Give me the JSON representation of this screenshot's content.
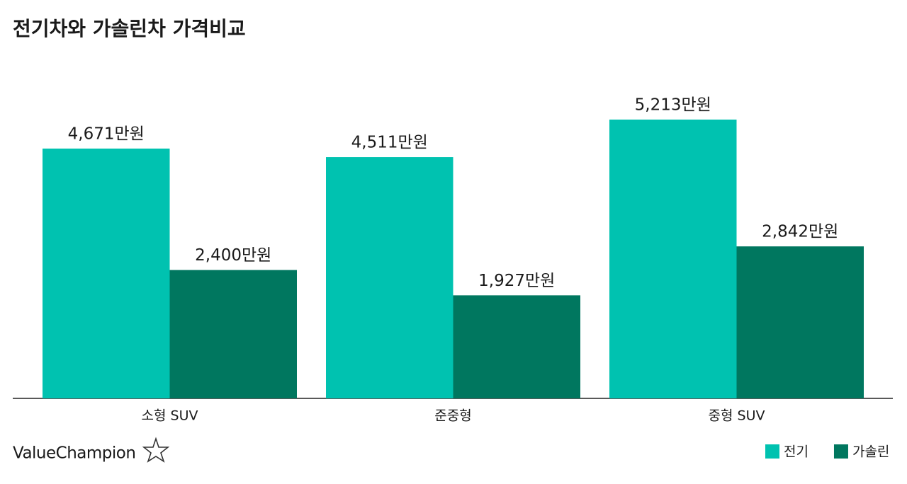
{
  "chart_data": {
    "type": "bar",
    "title": "전기차와 가솔린차 가격비교",
    "categories": [
      "소형 SUV",
      "준중형",
      "중형 SUV"
    ],
    "series": [
      {
        "name": "전기",
        "color": "#00c2b0",
        "values": [
          4671,
          4511,
          5213
        ],
        "value_labels": [
          "4,671만원",
          "4,511만원",
          "5,213만원"
        ]
      },
      {
        "name": "가솔린",
        "color": "#00775f",
        "values": [
          2400,
          1927,
          2842
        ],
        "value_labels": [
          "2,400만원",
          "1,927만원",
          "2,842만원"
        ]
      }
    ],
    "legend": "bottom-right"
  },
  "logo": "ValueChampion"
}
